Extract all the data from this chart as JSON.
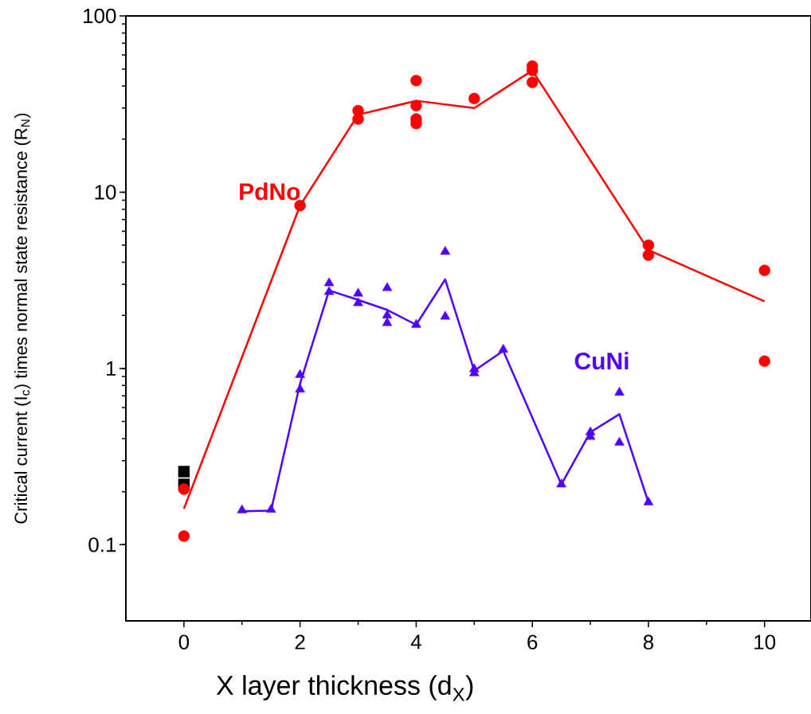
{
  "chart_data": {
    "type": "scatter",
    "xlabel": "X layer thickness (d$_{X}$)",
    "ylabel": "Critical current (I$_{c}$) times normal state resistance (R$_{N}$)",
    "log": "y",
    "xlim": [
      -1,
      10.8
    ],
    "ylim": [
      0.037,
      100
    ],
    "xticks": [
      0,
      2,
      4,
      6,
      8,
      10
    ],
    "yticks": [
      0.1,
      1,
      10,
      100
    ],
    "grid": false,
    "series": [
      {
        "marker": "square",
        "color": "#000000",
        "x": [
          0,
          0
        ],
        "values": [
          0.26,
          0.22
        ]
      },
      {
        "name": "PdNo",
        "marker": "circle",
        "color": "#ff0000",
        "x": [
          0,
          0,
          2,
          3,
          3,
          4,
          4,
          4,
          4,
          5,
          6,
          6,
          6,
          8,
          8,
          10,
          10
        ],
        "values": [
          0.207,
          0.112,
          8.4,
          29,
          26,
          43,
          31,
          26,
          24.5,
          34,
          52,
          49,
          42,
          5.0,
          4.4,
          3.6,
          1.1
        ]
      },
      {
        "type": "line",
        "color": "#ff0000",
        "x": [
          0,
          2,
          3,
          4,
          5,
          6,
          8,
          10
        ],
        "values": [
          0.16,
          8.4,
          27.5,
          33,
          30,
          49,
          4.7,
          2.4
        ]
      },
      {
        "name": "CuNi",
        "marker": "triangle",
        "color": "#4f00ff",
        "x": [
          1,
          1.5,
          2,
          2,
          2.5,
          2.5,
          3,
          3,
          3.5,
          3.5,
          3.5,
          4,
          4.5,
          4.5,
          5,
          5,
          5.5,
          6.5,
          7,
          7,
          7.5,
          7.5,
          8
        ],
        "values": [
          0.157,
          0.158,
          0.92,
          0.76,
          3.05,
          2.72,
          2.66,
          2.35,
          2.86,
          2.0,
          1.81,
          1.77,
          4.6,
          1.97,
          0.99,
          0.94,
          1.28,
          0.22,
          0.435,
          0.41,
          0.73,
          0.38,
          0.174
        ]
      },
      {
        "type": "line",
        "color": "#4f00ff",
        "x": [
          1,
          1.5,
          2,
          2.5,
          3,
          3.5,
          4,
          4.5,
          5,
          5.5,
          6.5,
          7,
          7.5,
          8
        ],
        "values": [
          0.155,
          0.156,
          0.82,
          2.77,
          2.45,
          2.15,
          1.77,
          3.2,
          0.97,
          1.26,
          0.22,
          0.435,
          0.55,
          0.174
        ]
      }
    ]
  }
}
